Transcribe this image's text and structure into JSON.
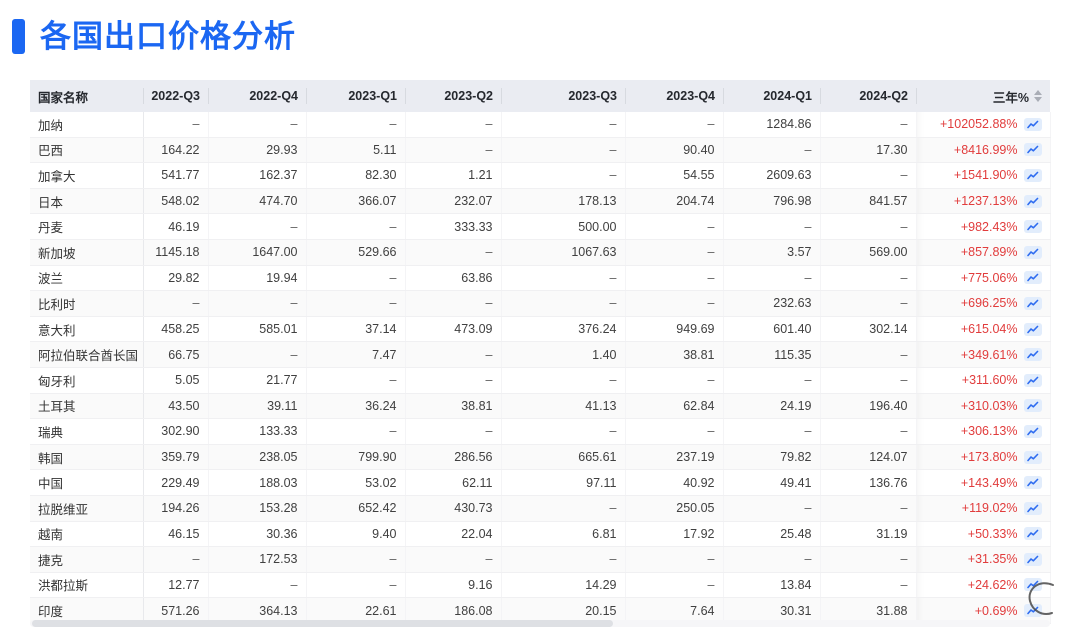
{
  "page": {
    "title": "各国出口价格分析",
    "accent_color": "#1b67f2",
    "negative_red": "#e13c3c"
  },
  "icons": {
    "trend_chart_icon": "mini-line-chart",
    "sort_icon": "caret-up-down"
  },
  "table": {
    "columns": {
      "country": "国家名称",
      "quarters": [
        "2022-Q3",
        "2022-Q4",
        "2023-Q1",
        "2023-Q2",
        "2023-Q3",
        "2023-Q4",
        "2024-Q1",
        "2024-Q2"
      ],
      "pct": "三年%"
    },
    "empty_placeholder": "–",
    "rows": [
      {
        "country": "加纳",
        "values": [
          "–",
          "–",
          "–",
          "–",
          "–",
          "–",
          "1284.86",
          "–"
        ],
        "pct": "+102052.88%"
      },
      {
        "country": "巴西",
        "values": [
          "164.22",
          "29.93",
          "5.11",
          "–",
          "–",
          "90.40",
          "–",
          "17.30"
        ],
        "pct": "+8416.99%"
      },
      {
        "country": "加拿大",
        "values": [
          "541.77",
          "162.37",
          "82.30",
          "1.21",
          "–",
          "54.55",
          "2609.63",
          "–"
        ],
        "pct": "+1541.90%"
      },
      {
        "country": "日本",
        "values": [
          "548.02",
          "474.70",
          "366.07",
          "232.07",
          "178.13",
          "204.74",
          "796.98",
          "841.57"
        ],
        "pct": "+1237.13%"
      },
      {
        "country": "丹麦",
        "values": [
          "46.19",
          "–",
          "–",
          "333.33",
          "500.00",
          "–",
          "–",
          "–"
        ],
        "pct": "+982.43%"
      },
      {
        "country": "新加坡",
        "values": [
          "1145.18",
          "1647.00",
          "529.66",
          "–",
          "1067.63",
          "–",
          "3.57",
          "569.00"
        ],
        "pct": "+857.89%"
      },
      {
        "country": "波兰",
        "values": [
          "29.82",
          "19.94",
          "–",
          "63.86",
          "–",
          "–",
          "–",
          "–"
        ],
        "pct": "+775.06%"
      },
      {
        "country": "比利时",
        "values": [
          "–",
          "–",
          "–",
          "–",
          "–",
          "–",
          "232.63",
          "–"
        ],
        "pct": "+696.25%"
      },
      {
        "country": "意大利",
        "values": [
          "458.25",
          "585.01",
          "37.14",
          "473.09",
          "376.24",
          "949.69",
          "601.40",
          "302.14"
        ],
        "pct": "+615.04%"
      },
      {
        "country": "阿拉伯联合酋长国",
        "values": [
          "66.75",
          "–",
          "7.47",
          "–",
          "1.40",
          "38.81",
          "115.35",
          "–"
        ],
        "pct": "+349.61%"
      },
      {
        "country": "匈牙利",
        "values": [
          "5.05",
          "21.77",
          "–",
          "–",
          "–",
          "–",
          "–",
          "–"
        ],
        "pct": "+311.60%"
      },
      {
        "country": "土耳其",
        "values": [
          "43.50",
          "39.11",
          "36.24",
          "38.81",
          "41.13",
          "62.84",
          "24.19",
          "196.40"
        ],
        "pct": "+310.03%"
      },
      {
        "country": "瑞典",
        "values": [
          "302.90",
          "133.33",
          "–",
          "–",
          "–",
          "–",
          "–",
          "–"
        ],
        "pct": "+306.13%"
      },
      {
        "country": "韩国",
        "values": [
          "359.79",
          "238.05",
          "799.90",
          "286.56",
          "665.61",
          "237.19",
          "79.82",
          "124.07"
        ],
        "pct": "+173.80%"
      },
      {
        "country": "中国",
        "values": [
          "229.49",
          "188.03",
          "53.02",
          "62.11",
          "97.11",
          "40.92",
          "49.41",
          "136.76"
        ],
        "pct": "+143.49%"
      },
      {
        "country": "拉脱维亚",
        "values": [
          "194.26",
          "153.28",
          "652.42",
          "430.73",
          "–",
          "250.05",
          "–",
          "–"
        ],
        "pct": "+119.02%"
      },
      {
        "country": "越南",
        "values": [
          "46.15",
          "30.36",
          "9.40",
          "22.04",
          "6.81",
          "17.92",
          "25.48",
          "31.19"
        ],
        "pct": "+50.33%"
      },
      {
        "country": "捷克",
        "values": [
          "–",
          "172.53",
          "–",
          "–",
          "–",
          "–",
          "–",
          "–"
        ],
        "pct": "+31.35%"
      },
      {
        "country": "洪都拉斯",
        "values": [
          "12.77",
          "–",
          "–",
          "9.16",
          "14.29",
          "–",
          "13.84",
          "–"
        ],
        "pct": "+24.62%"
      },
      {
        "country": "印度",
        "values": [
          "571.26",
          "364.13",
          "22.61",
          "186.08",
          "20.15",
          "7.64",
          "30.31",
          "31.88"
        ],
        "pct": "+0.69%"
      }
    ]
  }
}
